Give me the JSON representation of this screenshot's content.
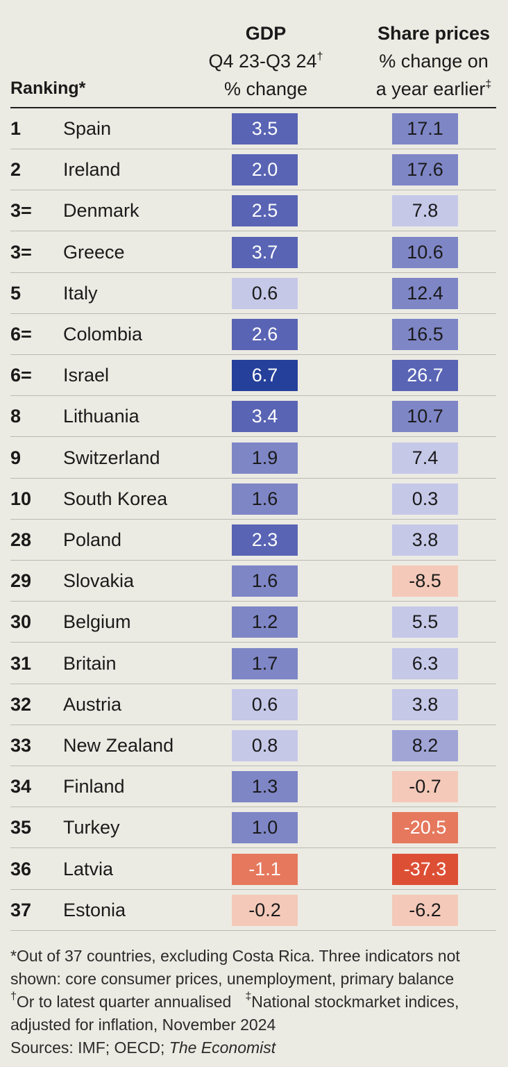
{
  "header": {
    "ranking_label": "Ranking*",
    "gdp_title": "GDP",
    "gdp_sub1": "Q4 23-Q3 24",
    "gdp_sub1_mark": "†",
    "gdp_sub2": "% change",
    "share_title": "Share prices",
    "share_sub1": "% change on",
    "share_sub2": "a year earlier",
    "share_sub2_mark": "‡"
  },
  "colors": {
    "background": "#ecebe3",
    "blue_darkest": "#25409a",
    "blue_dark": "#5964b4",
    "blue_mid": "#7e86c6",
    "blue_light": "#a0a5d6",
    "blue_lightest": "#c6c8e8",
    "red_lightest": "#f4c9b9",
    "red_mid": "#e5785d",
    "red_dark": "#dd4f35"
  },
  "chart_data": {
    "type": "table",
    "columns": [
      "Ranking*",
      "",
      "GDP Q4 23-Q3 24 % change",
      "Share prices % change on a year earlier"
    ],
    "rows": [
      {
        "rank": "1",
        "country": "Spain",
        "gdp": "3.5",
        "share": "17.1"
      },
      {
        "rank": "2",
        "country": "Ireland",
        "gdp": "2.0",
        "share": "17.6"
      },
      {
        "rank": "3=",
        "country": "Denmark",
        "gdp": "2.5",
        "share": "7.8"
      },
      {
        "rank": "3=",
        "country": "Greece",
        "gdp": "3.7",
        "share": "10.6"
      },
      {
        "rank": "5",
        "country": "Italy",
        "gdp": "0.6",
        "share": "12.4"
      },
      {
        "rank": "6=",
        "country": "Colombia",
        "gdp": "2.6",
        "share": "16.5"
      },
      {
        "rank": "6=",
        "country": "Israel",
        "gdp": "6.7",
        "share": "26.7"
      },
      {
        "rank": "8",
        "country": "Lithuania",
        "gdp": "3.4",
        "share": "10.7"
      },
      {
        "rank": "9",
        "country": "Switzerland",
        "gdp": "1.9",
        "share": "7.4"
      },
      {
        "rank": "10",
        "country": "South Korea",
        "gdp": "1.6",
        "share": "0.3"
      },
      {
        "rank": "28",
        "country": "Poland",
        "gdp": "2.3",
        "share": "3.8"
      },
      {
        "rank": "29",
        "country": "Slovakia",
        "gdp": "1.6",
        "share": "-8.5"
      },
      {
        "rank": "30",
        "country": "Belgium",
        "gdp": "1.2",
        "share": "5.5"
      },
      {
        "rank": "31",
        "country": "Britain",
        "gdp": "1.7",
        "share": "6.3"
      },
      {
        "rank": "32",
        "country": "Austria",
        "gdp": "0.6",
        "share": "3.8"
      },
      {
        "rank": "33",
        "country": "New Zealand",
        "gdp": "0.8",
        "share": "8.2"
      },
      {
        "rank": "34",
        "country": "Finland",
        "gdp": "1.3",
        "share": "-0.7"
      },
      {
        "rank": "35",
        "country": "Turkey",
        "gdp": "1.0",
        "share": "-20.5"
      },
      {
        "rank": "36",
        "country": "Latvia",
        "gdp": "-1.1",
        "share": "-37.3"
      },
      {
        "rank": "37",
        "country": "Estonia",
        "gdp": "-0.2",
        "share": "-6.2"
      }
    ]
  },
  "notes": {
    "line1": "*Out of 37 countries, excluding Costa Rica. Three indicators not",
    "line2": "shown: core consumer prices, unemployment, primary balance",
    "line3a_mark": "†",
    "line3a": "Or to latest quarter annualised",
    "line3b_mark": "‡",
    "line3b": "National stockmarket indices,",
    "line4": "adjusted for inflation, November 2024",
    "line5_prefix": "Sources: IMF; OECD; ",
    "line5_italic": "The Economist"
  }
}
